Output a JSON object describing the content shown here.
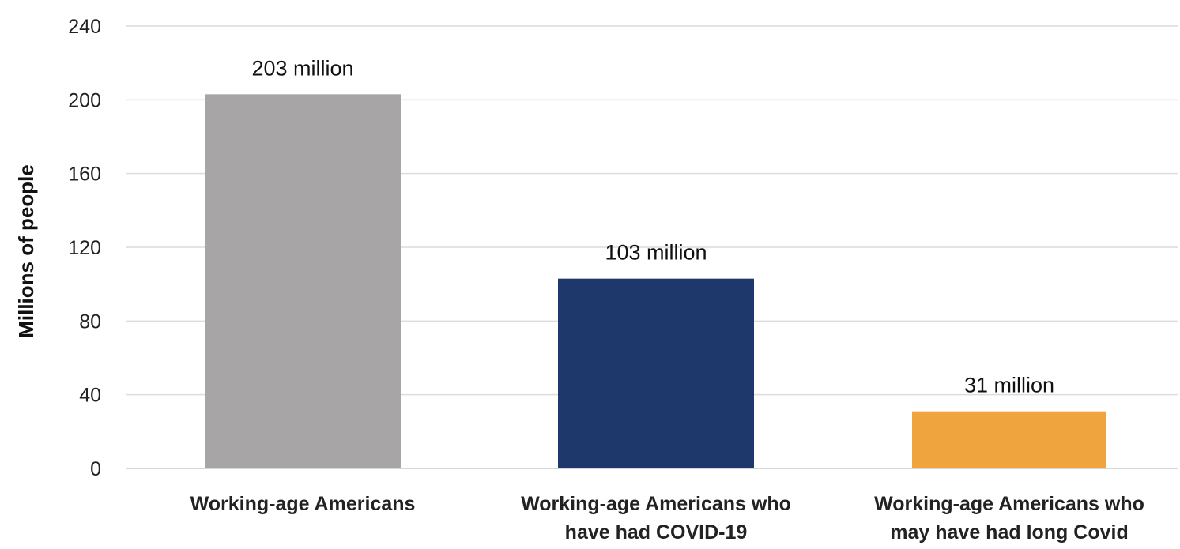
{
  "chart_data": {
    "type": "bar",
    "title": "",
    "xlabel": "",
    "ylabel": "Millions of people",
    "ylim": [
      0,
      240
    ],
    "yticks": [
      0,
      40,
      80,
      120,
      160,
      200,
      240
    ],
    "ytick_labels": [
      "0",
      "40",
      "80",
      "120",
      "160",
      "200",
      "240"
    ],
    "grid": true,
    "legend": "none",
    "categories": [
      [
        "Working-age Americans"
      ],
      [
        "Working-age Americans who",
        "have had COVID-19"
      ],
      [
        "Working-age Americans who",
        "may have had long Covid"
      ]
    ],
    "values": [
      203,
      103,
      31
    ],
    "data_labels": [
      "203 million",
      "103 million",
      "31 million"
    ],
    "colors": [
      "#a7a5a6",
      "#1f386b",
      "#f0a43d"
    ]
  }
}
